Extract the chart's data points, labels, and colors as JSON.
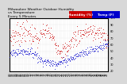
{
  "title": "Milwaukee Weather Outdoor Humidity\nvs Temperature\nEvery 5 Minutes",
  "background_color": "#d8d8d8",
  "plot_bg_color": "#ffffff",
  "grid_color": "#d0d0d0",
  "legend": [
    {
      "label": "Humidity (%)",
      "color": "#cc0000"
    },
    {
      "label": "Temp (F)",
      "color": "#0000cc"
    }
  ],
  "ylim": [
    20,
    100
  ],
  "xlim": [
    0,
    287
  ],
  "title_fontsize": 3.2,
  "tick_fontsize": 2.5,
  "ytick_fontsize": 2.5,
  "legend_fontsize": 3.0,
  "dot_size": 0.3
}
